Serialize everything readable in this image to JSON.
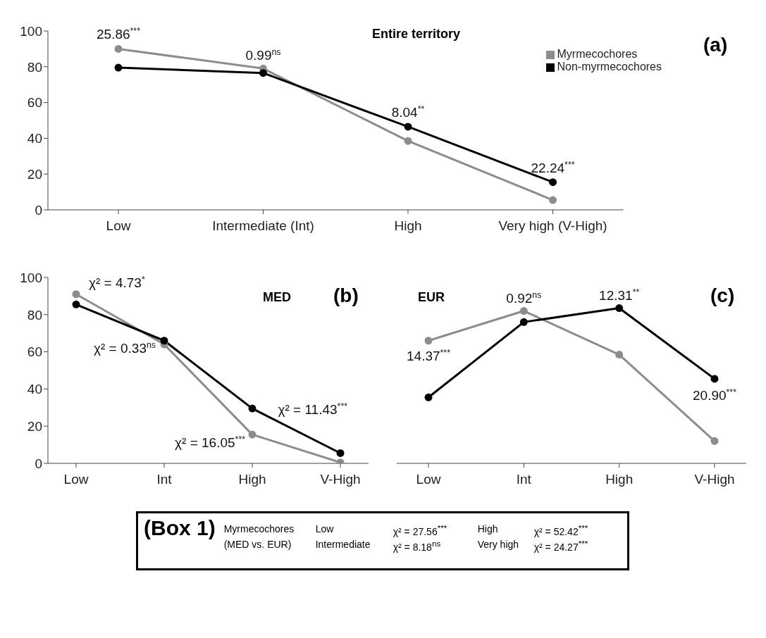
{
  "chart_data": [
    {
      "type": "line",
      "title": "Entire territory",
      "categories": [
        "Low",
        "Intermediate (Int)",
        "High",
        "Very high (V-High)"
      ],
      "series": [
        {
          "name": "Myrmecochores",
          "color": "#8c8c8c",
          "values": [
            90,
            79,
            38.5,
            5.5
          ]
        },
        {
          "name": "Non-myrmecochores",
          "color": "#000000",
          "values": [
            79.5,
            76.5,
            46.5,
            15.5
          ]
        }
      ],
      "ylim": [
        0,
        100
      ],
      "yticks": [
        0,
        20,
        40,
        60,
        80,
        100
      ],
      "grid": false,
      "legend": "top right",
      "marker": "circle",
      "annotations": [
        "(a)",
        {
          "text": "25.86$^{***}$",
          "x": "Low",
          "y": 90
        },
        {
          "text": "0.99$^{ns}$",
          "x": "Intermediate (Int)",
          "y": 79
        },
        {
          "text": "8.04$^{**}$",
          "x": "High",
          "y": 46.5
        },
        {
          "text": "22.24$^{***}$",
          "x": "Very high (V-High)",
          "y": 15.5
        }
      ]
    },
    {
      "type": "line",
      "title": "MED",
      "categories": [
        "Low",
        "Int",
        "High",
        "V-High"
      ],
      "series": [
        {
          "color": "#8c8c8c",
          "values": [
            91,
            64,
            15.5,
            0.5
          ]
        },
        {
          "color": "#000000",
          "values": [
            85.5,
            66,
            29.5,
            5.5
          ]
        }
      ],
      "ylim": [
        0,
        100
      ],
      "yticks": [
        0,
        20,
        40,
        60,
        80,
        100
      ],
      "grid": false,
      "marker": "circle",
      "annotations": [
        "(b)",
        {
          "text": "χ² = 4.73$^{*}$",
          "x": "Low",
          "y": 91
        },
        {
          "text": "χ² = 0.33$^{ns}$",
          "x": "Int",
          "y": 64
        },
        {
          "text": "χ² = 16.05$^{***}$",
          "x": "High",
          "y": 15.5
        },
        {
          "text": "χ² = 11.43$^{***}$",
          "x": "V-High",
          "y": 5.5
        }
      ]
    },
    {
      "type": "line",
      "title": "EUR",
      "categories": [
        "Low",
        "Int",
        "High",
        "V-High"
      ],
      "series": [
        {
          "color": "#8c8c8c",
          "values": [
            66,
            82,
            58.5,
            12
          ]
        },
        {
          "color": "#000000",
          "values": [
            35.5,
            76,
            83.5,
            45.5
          ]
        }
      ],
      "ylim": [
        0,
        100
      ],
      "yticks": [
        0,
        20,
        40,
        60,
        80,
        100
      ],
      "grid": false,
      "marker": "circle",
      "tick_labels": "x",
      "annotations": [
        "(c)",
        {
          "text": "14.37$^{***}$",
          "x": "Low",
          "y": 66
        },
        {
          "text": "0.92$^{ns}$",
          "x": "Int",
          "y": 82
        },
        {
          "text": "12.31$^{**}$",
          "x": "High",
          "y": 83.5
        },
        {
          "text": "20.90$^{***}$",
          "x": "V-High",
          "y": 45.5
        }
      ]
    },
    {
      "type": "other",
      "title": "(Box 1)",
      "annotations": [
        "Myrmecochores",
        "Low",
        "χ² = 27.56$^{***}$",
        "High",
        "χ² = 52.42$^{***}$",
        "(MED vs. EUR)",
        "Intermediate",
        "χ² = 8.18$^{ns}$",
        "Very high",
        "χ² = 24.27$^{***}$"
      ]
    }
  ]
}
